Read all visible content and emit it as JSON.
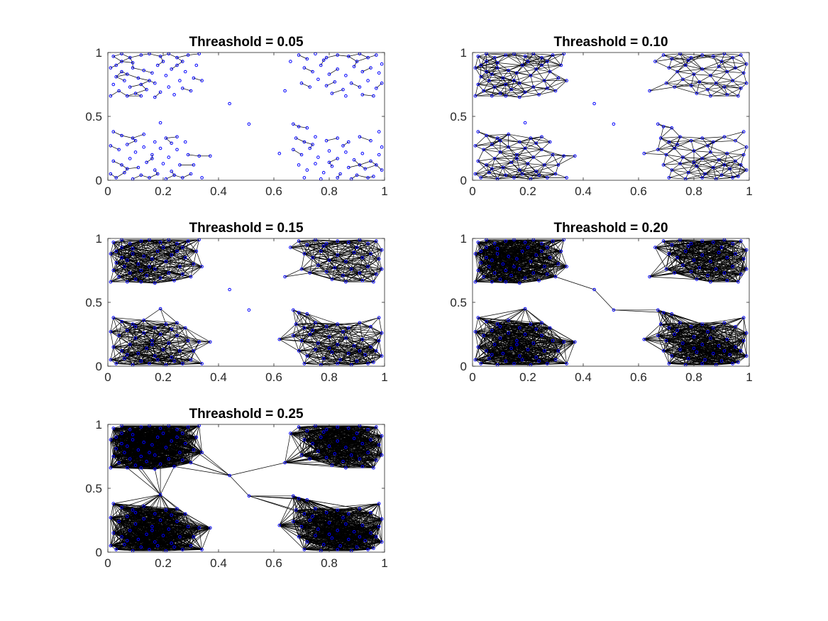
{
  "figure": {
    "colors": {
      "node": "#0000ff",
      "edge": "#000000",
      "axes": "#262626",
      "background": "#ffffff"
    },
    "grid": false,
    "legend": "none"
  },
  "chart_data": [
    {
      "type": "scatter",
      "title": "Threashold = 0.05",
      "threshold": 0.05,
      "xlim": [
        0,
        1
      ],
      "ylim": [
        0,
        1
      ],
      "xticks": [
        "0",
        "0.2",
        "0.4",
        "0.6",
        "0.8",
        "1"
      ],
      "yticks": [
        "0",
        "0.5",
        "1"
      ],
      "xlabel": "",
      "ylabel": "",
      "series": [
        {
          "style": "nodes connected by edges when distance < threshold"
        }
      ]
    },
    {
      "type": "scatter",
      "title": "Threashold = 0.10",
      "threshold": 0.1,
      "xlim": [
        0,
        1
      ],
      "ylim": [
        0,
        1
      ],
      "xticks": [
        "0",
        "0.2",
        "0.4",
        "0.6",
        "0.8",
        "1"
      ],
      "yticks": [
        "0",
        "0.5",
        "1"
      ],
      "xlabel": "",
      "ylabel": "",
      "series": [
        {
          "style": "nodes connected by edges when distance < threshold"
        }
      ]
    },
    {
      "type": "scatter",
      "title": "Threashold = 0.15",
      "threshold": 0.15,
      "xlim": [
        0,
        1
      ],
      "ylim": [
        0,
        1
      ],
      "xticks": [
        "0",
        "0.2",
        "0.4",
        "0.6",
        "0.8",
        "1"
      ],
      "yticks": [
        "0",
        "0.5",
        "1"
      ],
      "xlabel": "",
      "ylabel": "",
      "series": [
        {
          "style": "nodes connected by edges when distance < threshold"
        }
      ]
    },
    {
      "type": "scatter",
      "title": "Threashold = 0.20",
      "threshold": 0.2,
      "xlim": [
        0,
        1
      ],
      "ylim": [
        0,
        1
      ],
      "xticks": [
        "0",
        "0.2",
        "0.4",
        "0.6",
        "0.8",
        "1"
      ],
      "yticks": [
        "0",
        "0.5",
        "1"
      ],
      "xlabel": "",
      "ylabel": "",
      "series": [
        {
          "style": "nodes connected by edges when distance < threshold"
        }
      ]
    },
    {
      "type": "scatter",
      "title": "Threashold = 0.25",
      "threshold": 0.25,
      "xlim": [
        0,
        1
      ],
      "ylim": [
        0,
        1
      ],
      "xticks": [
        "0",
        "0.2",
        "0.4",
        "0.6",
        "0.8",
        "1"
      ],
      "yticks": [
        "0",
        "0.5",
        "1"
      ],
      "xlabel": "",
      "ylabel": "",
      "series": [
        {
          "style": "nodes connected by edges when distance < threshold"
        }
      ]
    }
  ],
  "points": [
    [
      0.02,
      0.97
    ],
    [
      0.05,
      0.99
    ],
    [
      0.08,
      0.96
    ],
    [
      0.12,
      0.98
    ],
    [
      0.15,
      0.99
    ],
    [
      0.19,
      0.97
    ],
    [
      0.22,
      0.99
    ],
    [
      0.25,
      0.96
    ],
    [
      0.29,
      0.98
    ],
    [
      0.33,
      0.99
    ],
    [
      0.01,
      0.88
    ],
    [
      0.03,
      0.9
    ],
    [
      0.05,
      0.85
    ],
    [
      0.07,
      0.83
    ],
    [
      0.09,
      0.88
    ],
    [
      0.11,
      0.8
    ],
    [
      0.13,
      0.86
    ],
    [
      0.16,
      0.84
    ],
    [
      0.18,
      0.9
    ],
    [
      0.21,
      0.82
    ],
    [
      0.23,
      0.87
    ],
    [
      0.26,
      0.78
    ],
    [
      0.28,
      0.85
    ],
    [
      0.31,
      0.8
    ],
    [
      0.34,
      0.78
    ],
    [
      0.02,
      0.75
    ],
    [
      0.04,
      0.7
    ],
    [
      0.06,
      0.78
    ],
    [
      0.08,
      0.73
    ],
    [
      0.1,
      0.68
    ],
    [
      0.12,
      0.75
    ],
    [
      0.14,
      0.71
    ],
    [
      0.17,
      0.76
    ],
    [
      0.19,
      0.69
    ],
    [
      0.22,
      0.73
    ],
    [
      0.24,
      0.67
    ],
    [
      0.27,
      0.72
    ],
    [
      0.3,
      0.7
    ],
    [
      0.03,
      0.81
    ],
    [
      0.09,
      0.92
    ],
    [
      0.15,
      0.78
    ],
    [
      0.2,
      0.93
    ],
    [
      0.25,
      0.9
    ],
    [
      0.12,
      0.66
    ],
    [
      0.07,
      0.66
    ],
    [
      0.01,
      0.66
    ],
    [
      0.17,
      0.65
    ],
    [
      0.32,
      0.9
    ],
    [
      0.27,
      0.93
    ],
    [
      0.05,
      0.93
    ],
    [
      0.69,
      0.98
    ],
    [
      0.72,
      0.95
    ],
    [
      0.75,
      0.99
    ],
    [
      0.79,
      0.96
    ],
    [
      0.83,
      0.98
    ],
    [
      0.87,
      0.97
    ],
    [
      0.91,
      0.99
    ],
    [
      0.94,
      0.96
    ],
    [
      0.97,
      0.98
    ],
    [
      0.71,
      0.88
    ],
    [
      0.74,
      0.85
    ],
    [
      0.77,
      0.9
    ],
    [
      0.8,
      0.83
    ],
    [
      0.83,
      0.87
    ],
    [
      0.86,
      0.82
    ],
    [
      0.89,
      0.89
    ],
    [
      0.92,
      0.85
    ],
    [
      0.95,
      0.88
    ],
    [
      0.98,
      0.84
    ],
    [
      0.7,
      0.76
    ],
    [
      0.73,
      0.73
    ],
    [
      0.76,
      0.79
    ],
    [
      0.79,
      0.74
    ],
    [
      0.82,
      0.77
    ],
    [
      0.85,
      0.71
    ],
    [
      0.88,
      0.76
    ],
    [
      0.91,
      0.73
    ],
    [
      0.94,
      0.78
    ],
    [
      0.97,
      0.72
    ],
    [
      0.99,
      0.76
    ],
    [
      0.81,
      0.68
    ],
    [
      0.86,
      0.66
    ],
    [
      0.92,
      0.67
    ],
    [
      0.96,
      0.66
    ],
    [
      0.66,
      0.93
    ],
    [
      0.64,
      0.7
    ],
    [
      0.78,
      0.94
    ],
    [
      0.9,
      0.93
    ],
    [
      0.99,
      0.91
    ],
    [
      0.02,
      0.38
    ],
    [
      0.05,
      0.35
    ],
    [
      0.09,
      0.33
    ],
    [
      0.13,
      0.36
    ],
    [
      0.17,
      0.3
    ],
    [
      0.21,
      0.33
    ],
    [
      0.25,
      0.34
    ],
    [
      0.28,
      0.3
    ],
    [
      0.01,
      0.27
    ],
    [
      0.04,
      0.24
    ],
    [
      0.07,
      0.28
    ],
    [
      0.1,
      0.22
    ],
    [
      0.13,
      0.26
    ],
    [
      0.16,
      0.2
    ],
    [
      0.19,
      0.25
    ],
    [
      0.22,
      0.18
    ],
    [
      0.25,
      0.24
    ],
    [
      0.29,
      0.2
    ],
    [
      0.33,
      0.19
    ],
    [
      0.02,
      0.15
    ],
    [
      0.05,
      0.12
    ],
    [
      0.08,
      0.17
    ],
    [
      0.11,
      0.1
    ],
    [
      0.14,
      0.14
    ],
    [
      0.17,
      0.08
    ],
    [
      0.2,
      0.13
    ],
    [
      0.23,
      0.07
    ],
    [
      0.26,
      0.12
    ],
    [
      0.3,
      0.05
    ],
    [
      0.34,
      0.02
    ],
    [
      0.01,
      0.05
    ],
    [
      0.03,
      0.02
    ],
    [
      0.06,
      0.06
    ],
    [
      0.09,
      0.01
    ],
    [
      0.12,
      0.04
    ],
    [
      0.15,
      0.02
    ],
    [
      0.18,
      0.05
    ],
    [
      0.21,
      0.01
    ],
    [
      0.24,
      0.04
    ],
    [
      0.27,
      0.02
    ],
    [
      0.31,
      0.12
    ],
    [
      0.07,
      0.09
    ],
    [
      0.16,
      0.17
    ],
    [
      0.19,
      0.45
    ],
    [
      0.1,
      0.31
    ],
    [
      0.23,
      0.29
    ],
    [
      0.68,
      0.33
    ],
    [
      0.71,
      0.3
    ],
    [
      0.75,
      0.34
    ],
    [
      0.79,
      0.31
    ],
    [
      0.83,
      0.33
    ],
    [
      0.87,
      0.3
    ],
    [
      0.91,
      0.34
    ],
    [
      0.95,
      0.31
    ],
    [
      0.98,
      0.38
    ],
    [
      0.67,
      0.24
    ],
    [
      0.7,
      0.2
    ],
    [
      0.73,
      0.25
    ],
    [
      0.76,
      0.18
    ],
    [
      0.8,
      0.23
    ],
    [
      0.83,
      0.17
    ],
    [
      0.86,
      0.22
    ],
    [
      0.89,
      0.16
    ],
    [
      0.92,
      0.21
    ],
    [
      0.95,
      0.15
    ],
    [
      0.98,
      0.2
    ],
    [
      0.69,
      0.12
    ],
    [
      0.72,
      0.08
    ],
    [
      0.75,
      0.13
    ],
    [
      0.78,
      0.06
    ],
    [
      0.81,
      0.11
    ],
    [
      0.84,
      0.05
    ],
    [
      0.87,
      0.1
    ],
    [
      0.9,
      0.04
    ],
    [
      0.93,
      0.09
    ],
    [
      0.96,
      0.03
    ],
    [
      0.99,
      0.08
    ],
    [
      0.71,
      0.02
    ],
    [
      0.77,
      0.01
    ],
    [
      0.83,
      0.02
    ],
    [
      0.88,
      0.01
    ],
    [
      0.94,
      0.02
    ],
    [
      0.97,
      0.12
    ],
    [
      0.99,
      0.26
    ],
    [
      0.74,
      0.28
    ],
    [
      0.85,
      0.27
    ],
    [
      0.62,
      0.21
    ],
    [
      0.69,
      0.42
    ],
    [
      0.72,
      0.41
    ],
    [
      0.67,
      0.44
    ],
    [
      0.8,
      0.14
    ],
    [
      0.91,
      0.12
    ],
    [
      0.44,
      0.6
    ],
    [
      0.51,
      0.44
    ],
    [
      0.37,
      0.19
    ]
  ]
}
